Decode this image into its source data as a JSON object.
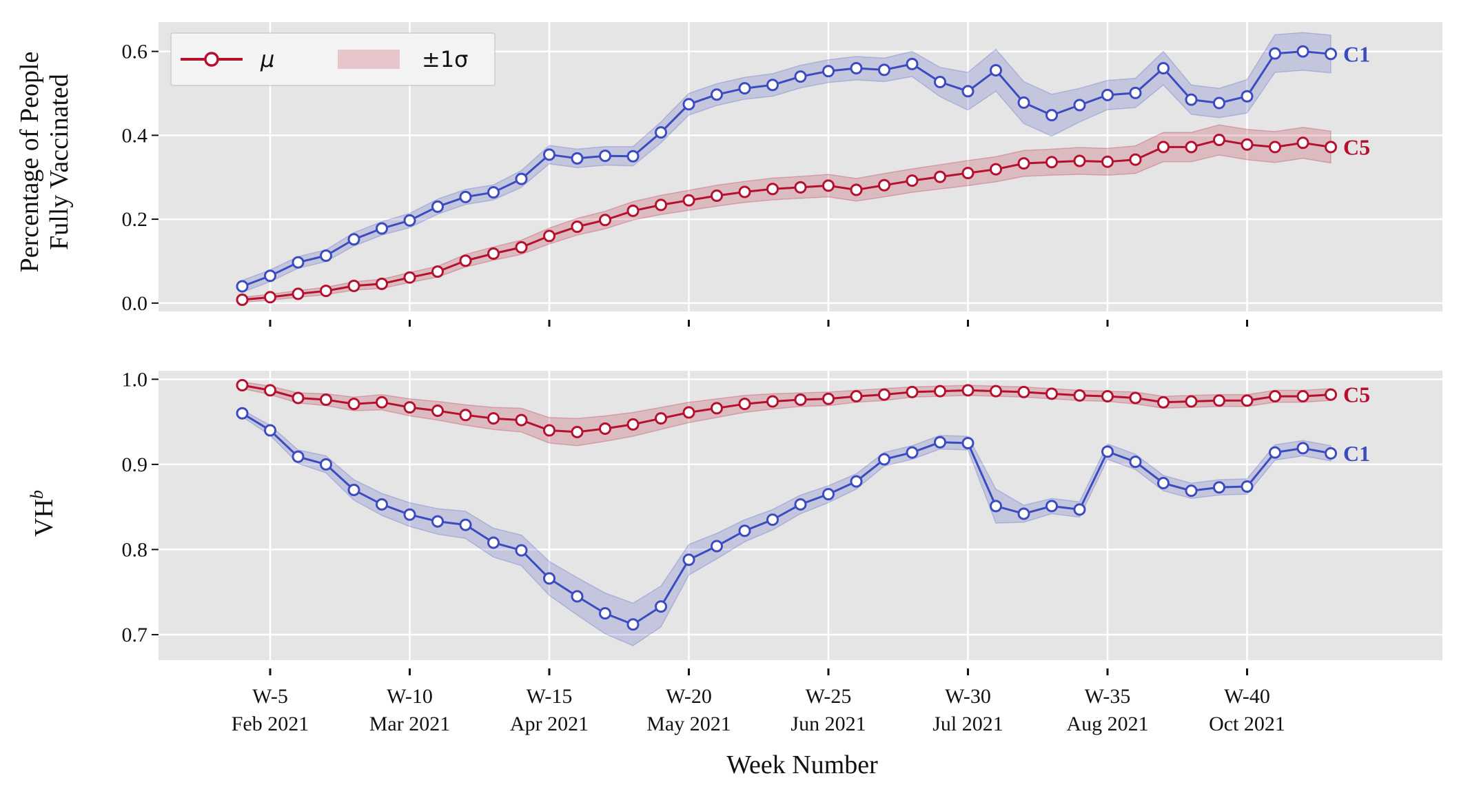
{
  "chart_data": [
    {
      "type": "line",
      "ylabel_lines": [
        "Percentage of People",
        "Fully Vaccinated"
      ],
      "ylim": [
        -0.02,
        0.67
      ],
      "yticks": [
        0.0,
        0.2,
        0.4,
        0.6
      ],
      "ytick_labels": [
        "0.0",
        "0.2",
        "0.4",
        "0.6"
      ],
      "xlim": [
        1.0,
        47.0
      ],
      "xticks": [
        5,
        10,
        15,
        20,
        25,
        30,
        35,
        40
      ],
      "grid": true,
      "legend": {
        "placement": "upper-left",
        "mean_label": "μ",
        "band_label": "±1σ",
        "color": "#b5112e"
      },
      "x": [
        4,
        5,
        6,
        7,
        8,
        9,
        10,
        11,
        12,
        13,
        14,
        15,
        16,
        17,
        18,
        19,
        20,
        21,
        22,
        23,
        24,
        25,
        26,
        27,
        28,
        29,
        30,
        31,
        32,
        33,
        34,
        35,
        36,
        37,
        38,
        39,
        40,
        41,
        42,
        43
      ],
      "series": [
        {
          "name": "C1",
          "color": "#3c4bc0",
          "values": [
            0.04,
            0.065,
            0.097,
            0.113,
            0.152,
            0.178,
            0.197,
            0.23,
            0.253,
            0.264,
            0.296,
            0.354,
            0.345,
            0.351,
            0.35,
            0.407,
            0.474,
            0.497,
            0.512,
            0.52,
            0.54,
            0.553,
            0.56,
            0.556,
            0.57,
            0.527,
            0.505,
            0.555,
            0.478,
            0.448,
            0.472,
            0.496,
            0.501,
            0.56,
            0.485,
            0.477,
            0.493,
            0.595,
            0.6,
            0.594
          ],
          "std": [
            0.014,
            0.014,
            0.014,
            0.014,
            0.016,
            0.016,
            0.017,
            0.018,
            0.018,
            0.018,
            0.02,
            0.022,
            0.022,
            0.022,
            0.023,
            0.025,
            0.026,
            0.026,
            0.026,
            0.027,
            0.027,
            0.027,
            0.028,
            0.028,
            0.03,
            0.035,
            0.045,
            0.05,
            0.05,
            0.05,
            0.04,
            0.035,
            0.035,
            0.04,
            0.035,
            0.035,
            0.04,
            0.045,
            0.045,
            0.045
          ]
        },
        {
          "name": "C5",
          "color": "#b5112e",
          "values": [
            0.008,
            0.014,
            0.022,
            0.029,
            0.041,
            0.046,
            0.061,
            0.075,
            0.101,
            0.118,
            0.133,
            0.16,
            0.182,
            0.198,
            0.22,
            0.234,
            0.245,
            0.256,
            0.265,
            0.272,
            0.276,
            0.28,
            0.27,
            0.281,
            0.292,
            0.301,
            0.31,
            0.319,
            0.333,
            0.336,
            0.339,
            0.337,
            0.342,
            0.372,
            0.372,
            0.389,
            0.378,
            0.372,
            0.382,
            0.372
          ],
          "std": [
            0.006,
            0.007,
            0.008,
            0.009,
            0.01,
            0.011,
            0.012,
            0.013,
            0.015,
            0.016,
            0.017,
            0.019,
            0.02,
            0.021,
            0.022,
            0.023,
            0.024,
            0.025,
            0.025,
            0.026,
            0.026,
            0.027,
            0.027,
            0.028,
            0.028,
            0.029,
            0.03,
            0.03,
            0.031,
            0.031,
            0.032,
            0.032,
            0.033,
            0.035,
            0.035,
            0.036,
            0.036,
            0.037,
            0.037,
            0.038
          ]
        }
      ]
    },
    {
      "type": "line",
      "ylabel": "VH",
      "ylabel_sup": "b",
      "ylim": [
        0.67,
        1.01
      ],
      "yticks": [
        0.7,
        0.8,
        0.9,
        1.0
      ],
      "ytick_labels": [
        "0.7",
        "0.8",
        "0.9",
        "1.0"
      ],
      "xlim": [
        1.0,
        47.0
      ],
      "xticks": [
        5,
        10,
        15,
        20,
        25,
        30,
        35,
        40
      ],
      "xtick_labels": [
        "W-5",
        "W-10",
        "W-15",
        "W-20",
        "W-25",
        "W-30",
        "W-35",
        "W-40"
      ],
      "xtick_sublabels": [
        "Feb 2021",
        "Mar 2021",
        "Apr 2021",
        "May 2021",
        "Jun 2021",
        "Jul 2021",
        "Aug 2021",
        "Oct 2021"
      ],
      "xlabel": "Week Number",
      "grid": true,
      "x": [
        4,
        5,
        6,
        7,
        8,
        9,
        10,
        11,
        12,
        13,
        14,
        15,
        16,
        17,
        18,
        19,
        20,
        21,
        22,
        23,
        24,
        25,
        26,
        27,
        28,
        29,
        30,
        31,
        32,
        33,
        34,
        35,
        36,
        37,
        38,
        39,
        40,
        41,
        42,
        43
      ],
      "series": [
        {
          "name": "C5",
          "color": "#b5112e",
          "values": [
            0.993,
            0.987,
            0.978,
            0.976,
            0.971,
            0.973,
            0.967,
            0.963,
            0.958,
            0.954,
            0.952,
            0.94,
            0.938,
            0.942,
            0.947,
            0.954,
            0.961,
            0.966,
            0.971,
            0.974,
            0.976,
            0.977,
            0.98,
            0.982,
            0.985,
            0.986,
            0.987,
            0.986,
            0.985,
            0.983,
            0.981,
            0.98,
            0.978,
            0.973,
            0.974,
            0.975,
            0.975,
            0.98,
            0.98,
            0.982
          ],
          "std": [
            0.004,
            0.005,
            0.006,
            0.007,
            0.008,
            0.009,
            0.01,
            0.011,
            0.012,
            0.013,
            0.014,
            0.015,
            0.016,
            0.015,
            0.014,
            0.013,
            0.012,
            0.011,
            0.01,
            0.009,
            0.008,
            0.008,
            0.007,
            0.007,
            0.006,
            0.006,
            0.006,
            0.006,
            0.006,
            0.006,
            0.006,
            0.006,
            0.007,
            0.007,
            0.007,
            0.007,
            0.007,
            0.007,
            0.007,
            0.007
          ]
        },
        {
          "name": "C1",
          "color": "#3c4bc0",
          "values": [
            0.96,
            0.94,
            0.909,
            0.9,
            0.87,
            0.853,
            0.841,
            0.833,
            0.829,
            0.808,
            0.799,
            0.766,
            0.745,
            0.725,
            0.712,
            0.733,
            0.788,
            0.804,
            0.822,
            0.835,
            0.853,
            0.865,
            0.88,
            0.906,
            0.914,
            0.926,
            0.925,
            0.851,
            0.842,
            0.851,
            0.847,
            0.915,
            0.903,
            0.878,
            0.869,
            0.873,
            0.874,
            0.914,
            0.919,
            0.913
          ],
          "std": [
            0.004,
            0.006,
            0.008,
            0.01,
            0.012,
            0.013,
            0.014,
            0.015,
            0.016,
            0.017,
            0.018,
            0.02,
            0.022,
            0.024,
            0.025,
            0.024,
            0.018,
            0.015,
            0.013,
            0.012,
            0.011,
            0.01,
            0.009,
            0.008,
            0.008,
            0.008,
            0.008,
            0.02,
            0.01,
            0.009,
            0.009,
            0.009,
            0.009,
            0.009,
            0.009,
            0.009,
            0.009,
            0.009,
            0.009,
            0.009
          ]
        }
      ]
    }
  ]
}
